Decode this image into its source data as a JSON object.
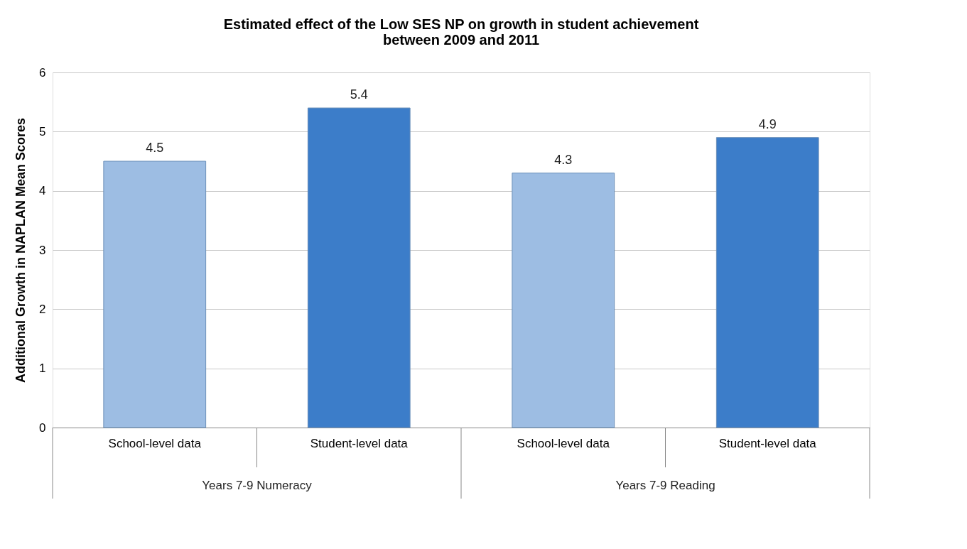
{
  "chart_data": {
    "type": "bar",
    "title": [
      "Estimated effect of the Low SES NP on growth in student achievement",
      "between 2009 and 2011"
    ],
    "ylabel": "Additional Growth in NAPLAN Mean Scores",
    "categories": [
      "School-level data",
      "Student-level data",
      "School-level data",
      "Student-level data"
    ],
    "values": [
      4.5,
      5.4,
      4.3,
      4.9
    ],
    "colors": [
      "#9dbde3",
      "#3c7dc9",
      "#9dbde3",
      "#3c7dc9"
    ],
    "ylim": [
      0,
      6
    ],
    "yticks": [
      0,
      1,
      2,
      3,
      4,
      5,
      6
    ],
    "grid": "y",
    "data_labels": true,
    "annotations": [
      "Years 7-9 Numeracy",
      "Years 7-9 Reading"
    ]
  }
}
